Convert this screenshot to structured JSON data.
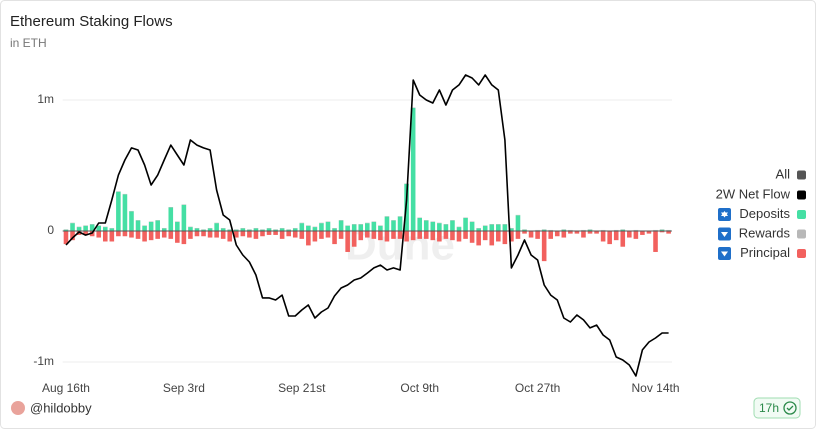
{
  "chart_data": {
    "type": "bar",
    "title": "Ethereum Staking Flows",
    "subtitle": "in ETH",
    "watermark": "Dune",
    "author": "@hildobby",
    "refreshed": "17h",
    "legend_all": "All",
    "legend_position": "right",
    "categories": [
      "Aug 16th",
      null,
      null,
      null,
      null,
      null,
      null,
      null,
      null,
      null,
      null,
      null,
      null,
      null,
      null,
      null,
      null,
      null,
      "Sep 3rd",
      null,
      null,
      null,
      null,
      null,
      null,
      null,
      null,
      null,
      null,
      null,
      null,
      null,
      null,
      null,
      null,
      null,
      "Sep 21st",
      null,
      null,
      null,
      null,
      null,
      null,
      null,
      null,
      null,
      null,
      null,
      null,
      null,
      null,
      null,
      null,
      null,
      "Oct 9th",
      null,
      null,
      null,
      null,
      null,
      null,
      null,
      null,
      null,
      null,
      null,
      null,
      null,
      null,
      null,
      null,
      null,
      "Oct 27th",
      null,
      null,
      null,
      null,
      null,
      null,
      null,
      null,
      null,
      null,
      null,
      null,
      null,
      null,
      null,
      null,
      null,
      "Nov 14th",
      null,
      null
    ],
    "ylim": [
      -1130000,
      1230000
    ],
    "yticks": [
      {
        "value": 1000000,
        "label": "1m"
      },
      0,
      {
        "value": -1000000,
        "label": "-1m"
      }
    ],
    "grid": true,
    "series": [
      {
        "name": "Deposits",
        "color": "#45dfa4",
        "stack": "pos",
        "values": [
          10000,
          60000,
          30000,
          40000,
          50000,
          40000,
          30000,
          20000,
          300000,
          280000,
          150000,
          80000,
          40000,
          70000,
          80000,
          20000,
          180000,
          70000,
          200000,
          30000,
          20000,
          10000,
          20000,
          60000,
          20000,
          10000,
          10000,
          20000,
          10000,
          20000,
          10000,
          20000,
          10000,
          20000,
          10000,
          20000,
          60000,
          40000,
          30000,
          60000,
          70000,
          20000,
          80000,
          40000,
          50000,
          50000,
          60000,
          70000,
          40000,
          110000,
          80000,
          110000,
          360000,
          940000,
          100000,
          80000,
          70000,
          60000,
          50000,
          80000,
          30000,
          100000,
          70000,
          20000,
          40000,
          50000,
          50000,
          50000,
          20000,
          120000,
          10000,
          0,
          5000,
          10000,
          5000,
          0,
          10000,
          5000,
          0,
          5000,
          10000,
          0,
          5000,
          0,
          5000,
          10000,
          0,
          5000,
          0,
          0,
          5000,
          10000,
          5000
        ]
      },
      {
        "name": "Rewards",
        "color": "#b8b8b8",
        "stack": "pos",
        "values": [
          3000,
          3000,
          3000,
          3000,
          3000,
          3000,
          3000,
          3000,
          3000,
          3000,
          3000,
          3000,
          3000,
          3000,
          3000,
          3000,
          3000,
          3000,
          3000,
          3000,
          3000,
          3000,
          3000,
          3000,
          3000,
          3000,
          3000,
          3000,
          3000,
          3000,
          3000,
          3000,
          3000,
          3000,
          3000,
          3000,
          3000,
          3000,
          3000,
          3000,
          3000,
          3000,
          3000,
          3000,
          3000,
          3000,
          3000,
          3000,
          3000,
          3000,
          3000,
          3000,
          3000,
          3000,
          3000,
          3000,
          3000,
          3000,
          3000,
          3000,
          3000,
          3000,
          3000,
          3000,
          3000,
          3000,
          3000,
          3000,
          3000,
          3000,
          3000,
          3000,
          3000,
          3000,
          3000,
          3000,
          3000,
          3000,
          3000,
          3000,
          3000,
          3000,
          3000,
          3000,
          3000,
          3000,
          3000,
          3000,
          3000,
          3000,
          3000,
          3000,
          3000
        ]
      },
      {
        "name": "Principal",
        "color": "#f2615e",
        "stack": "neg",
        "values": [
          -100000,
          -70000,
          -30000,
          -30000,
          -40000,
          -50000,
          -80000,
          -80000,
          -40000,
          -40000,
          -50000,
          -60000,
          -80000,
          -70000,
          -60000,
          -50000,
          -60000,
          -90000,
          -100000,
          -60000,
          -40000,
          -40000,
          -50000,
          -50000,
          -60000,
          -80000,
          -50000,
          -40000,
          -50000,
          -60000,
          -40000,
          -30000,
          -30000,
          -60000,
          -40000,
          -50000,
          -60000,
          -110000,
          -80000,
          -60000,
          -50000,
          -100000,
          -60000,
          -160000,
          -120000,
          -70000,
          -50000,
          -60000,
          -70000,
          -80000,
          -60000,
          -60000,
          -80000,
          -70000,
          -60000,
          -60000,
          -70000,
          -80000,
          -60000,
          -70000,
          -80000,
          -60000,
          -90000,
          -110000,
          -70000,
          -110000,
          -80000,
          -100000,
          -80000,
          -60000,
          -20000,
          -50000,
          -60000,
          -230000,
          -60000,
          -40000,
          -50000,
          -20000,
          -20000,
          -50000,
          -20000,
          -20000,
          -80000,
          -100000,
          -70000,
          -120000,
          -50000,
          -60000,
          -30000,
          -20000,
          -160000,
          -10000,
          -20000
        ]
      },
      {
        "name": "2W Net Flow",
        "color": "#000000",
        "type": "line",
        "values": [
          -107000,
          -53000,
          -8000,
          -31000,
          -15000,
          61000,
          61000,
          237000,
          427000,
          542000,
          634000,
          618000,
          504000,
          351000,
          427000,
          542000,
          656000,
          580000,
          504000,
          695000,
          656000,
          634000,
          618000,
          313000,
          122000,
          84000,
          -107000,
          -183000,
          -237000,
          -336000,
          -511000,
          -511000,
          -527000,
          -489000,
          -649000,
          -649000,
          -603000,
          -565000,
          -664000,
          -618000,
          -588000,
          -496000,
          -435000,
          -412000,
          -374000,
          -359000,
          -321000,
          -282000,
          -260000,
          -298000,
          -282000,
          -298000,
          237000,
          1153000,
          1038000,
          1000000,
          977000,
          1076000,
          962000,
          1076000,
          1115000,
          1191000,
          1168000,
          1115000,
          1191000,
          1115000,
          1076000,
          695000,
          -282000,
          -183000,
          -69000,
          -183000,
          -221000,
          -412000,
          -489000,
          -527000,
          -664000,
          -695000,
          -641000,
          -679000,
          -740000,
          -718000,
          -794000,
          -832000,
          -962000,
          -985000,
          -1023000,
          -1107000,
          -908000,
          -847000,
          -817000,
          -779000,
          -779000
        ]
      }
    ]
  }
}
